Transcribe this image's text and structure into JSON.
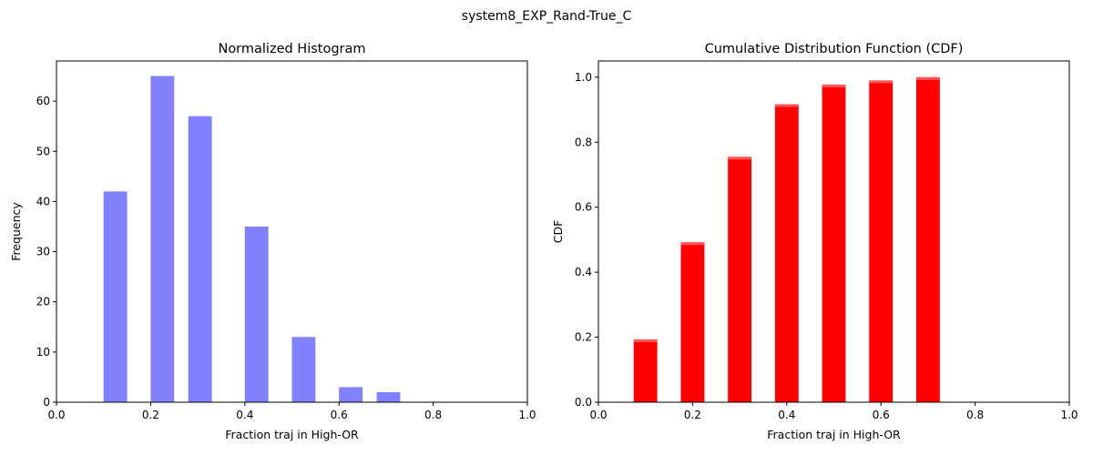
{
  "figure": {
    "suptitle": "system8_EXP_Rand-True_C"
  },
  "chart_data": [
    {
      "type": "bar",
      "title": "Normalized Histogram",
      "xlabel": "Fraction traj in High-OR",
      "ylabel": "Frequency",
      "xlim": [
        0.0,
        1.0
      ],
      "ylim": [
        0,
        68
      ],
      "xticks": [
        "0.0",
        "0.2",
        "0.4",
        "0.6",
        "0.8",
        "1.0"
      ],
      "xtick_values": [
        0.0,
        0.2,
        0.4,
        0.6,
        0.8,
        1.0
      ],
      "yticks": [
        "0",
        "10",
        "20",
        "30",
        "40",
        "50",
        "60"
      ],
      "ytick_values": [
        0,
        10,
        20,
        30,
        40,
        50,
        60
      ],
      "bin_width": 0.05,
      "x": [
        0.1,
        0.2,
        0.28,
        0.4,
        0.5,
        0.6,
        0.68
      ],
      "values": [
        42,
        65,
        57,
        35,
        13,
        3,
        2
      ],
      "color": "#4b4bff",
      "grid": false
    },
    {
      "type": "bar",
      "title": "Cumulative Distribution Function (CDF)",
      "xlabel": "Fraction traj in High-OR",
      "ylabel": "CDF",
      "xlim": [
        0.0,
        1.0
      ],
      "ylim": [
        0.0,
        1.05
      ],
      "xticks": [
        "0.0",
        "0.2",
        "0.4",
        "0.6",
        "0.8",
        "1.0"
      ],
      "xtick_values": [
        0.0,
        0.2,
        0.4,
        0.6,
        0.8,
        1.0
      ],
      "yticks": [
        "0.0",
        "0.2",
        "0.4",
        "0.6",
        "0.8",
        "1.0"
      ],
      "ytick_values": [
        0.0,
        0.2,
        0.4,
        0.6,
        0.8,
        1.0
      ],
      "bin_width": 0.05,
      "x": [
        0.075,
        0.175,
        0.275,
        0.375,
        0.475,
        0.575,
        0.675
      ],
      "values": [
        0.193,
        0.492,
        0.755,
        0.917,
        0.977,
        0.99,
        1.0
      ],
      "color": "#ff0000",
      "grid": false
    }
  ]
}
